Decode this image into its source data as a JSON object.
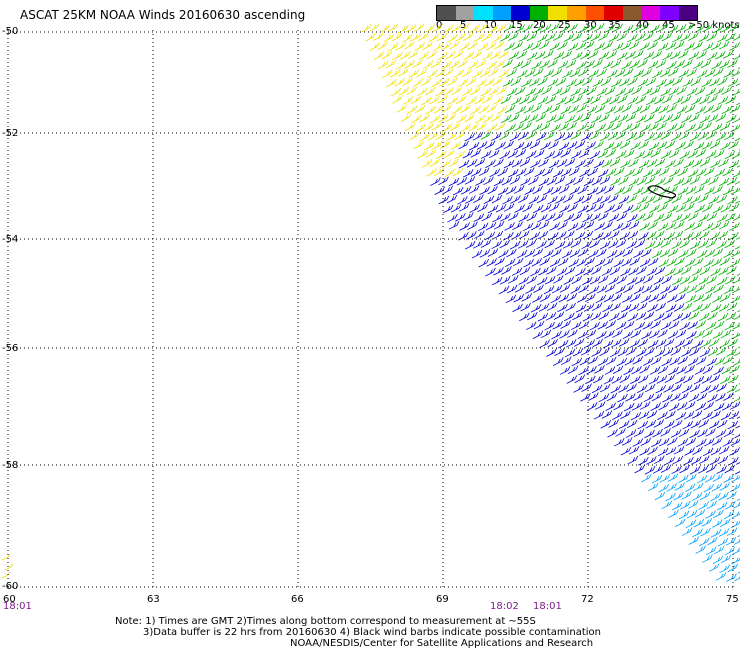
{
  "title": "ASCAT 25KM NOAA Winds 20160630 ascending",
  "legend": {
    "colors": [
      "#505050",
      "#a0a0a0",
      "#00e0ff",
      "#00a0ff",
      "#0000d0",
      "#00b000",
      "#f0e000",
      "#ffa000",
      "#ff5000",
      "#e00000",
      "#8a5a2e",
      "#e000e0",
      "#8000ff",
      "#4b0082"
    ],
    "labels": [
      "0",
      "5",
      "10",
      "15",
      "20",
      "25",
      "30",
      "35",
      "40",
      "45",
      ">50 knots"
    ]
  },
  "axes": {
    "lat_ticks": [
      "-50",
      "-52",
      "-54",
      "-56",
      "-58",
      "-60"
    ],
    "lon_ticks": [
      "60",
      "63",
      "66",
      "69",
      "72",
      "75"
    ]
  },
  "times": [
    "18:01",
    "18:02",
    "18:01"
  ],
  "notes": [
    "Note: 1) Times are GMT 2)Times along bottom correspond to measurement at ~55S",
    "3)Data buffer is 22 hrs from 20160630 4) Black wind barbs indicate possible contamination",
    "NOAA/NESDIS/Center for Satellite Applications and Research"
  ],
  "colors": {
    "yellow": "#f0e000",
    "green": "#00b000",
    "blue": "#0000d0",
    "cyan": "#00a0ff",
    "grid": "#000000"
  }
}
